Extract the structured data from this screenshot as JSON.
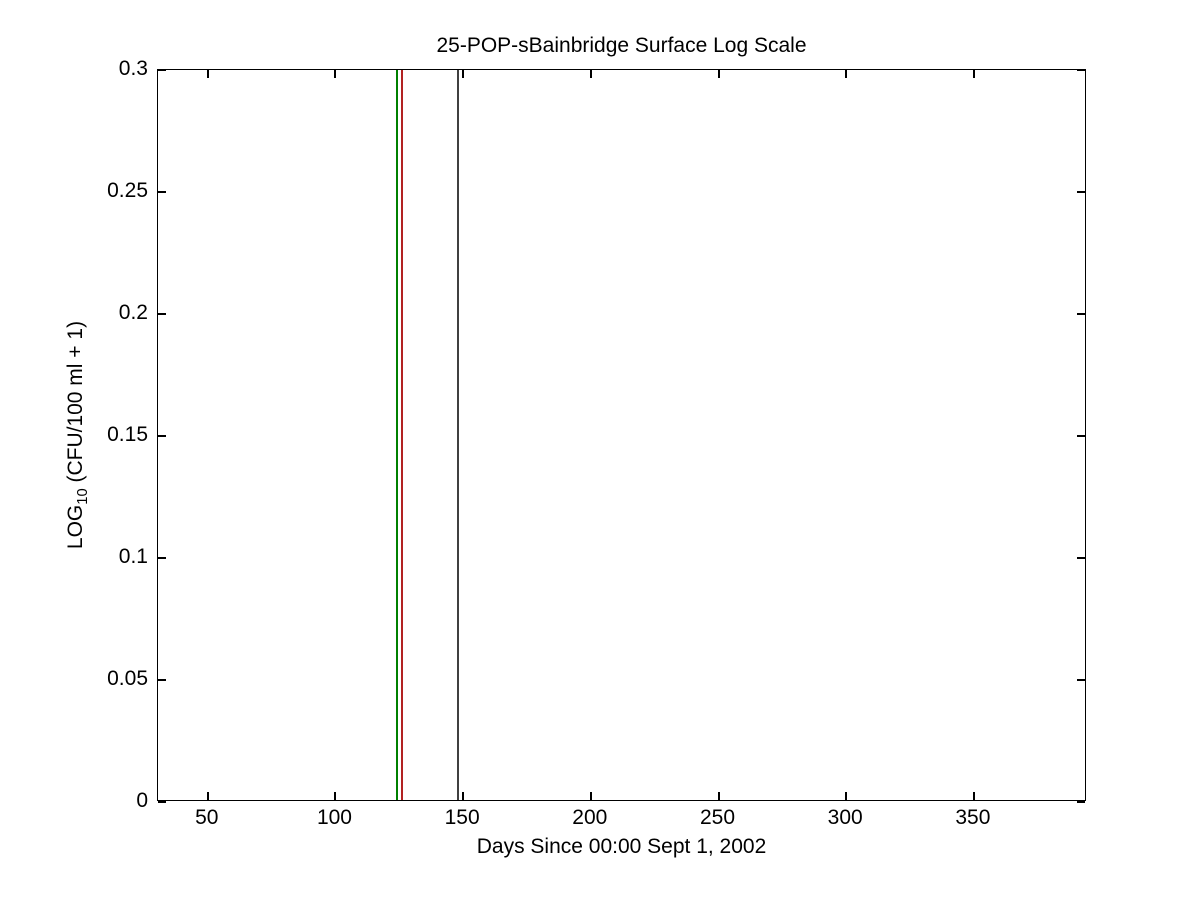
{
  "figure": {
    "title": "25-POP-sBainbridge Surface Log Scale",
    "xlabel": "Days Since 00:00 Sept 1, 2002",
    "ylabel": {
      "prefix": "LOG",
      "subscript": "10",
      "suffix": " (CFU/100 ml + 1)"
    }
  },
  "chart_data": {
    "type": "line",
    "title": "25-POP-sBainbridge Surface Log Scale",
    "xlabel": "Days Since 00:00 Sept 1, 2002",
    "ylabel": "LOG10 (CFU/100 ml + 1)",
    "xlim": [
      30.5,
      394.3
    ],
    "ylim": [
      0,
      0.3
    ],
    "xticks": [
      50,
      100,
      150,
      200,
      250,
      300,
      350
    ],
    "yticks": [
      0,
      0.05,
      0.1,
      0.15,
      0.2,
      0.25,
      0.3
    ],
    "grid": false,
    "tick_direction": "in",
    "box": true,
    "series": [],
    "vertical_lines": [
      {
        "x": 124,
        "color": "#008000",
        "name": "green-event-line"
      },
      {
        "x": 126,
        "color": "#b22222",
        "name": "red-event-line"
      },
      {
        "x": 148,
        "color": "#404040",
        "name": "gray-event-line"
      }
    ],
    "background_color": "#ffffff",
    "axis_color": "#000000"
  }
}
